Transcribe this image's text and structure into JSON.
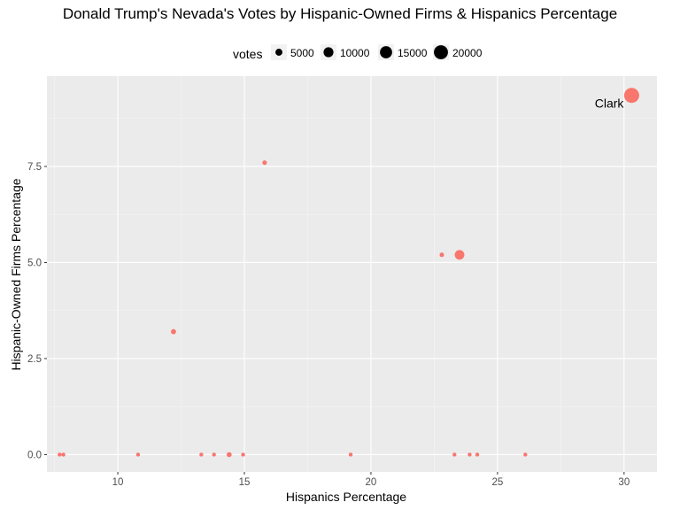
{
  "chart_data": {
    "type": "scatter",
    "title": "Donald Trump's Nevada's Votes by Hispanic-Owned Firms & Hispanics Percentage",
    "xlabel": "Hispanics Percentage",
    "ylabel": "Hispanic-Owned Firms Percentage",
    "xlim": [
      7.2,
      31.3
    ],
    "ylim": [
      -0.45,
      9.85
    ],
    "x_ticks": [
      10,
      15,
      20,
      25,
      30
    ],
    "y_ticks": [
      0.0,
      2.5,
      5.0,
      7.5
    ],
    "y_tick_labels": [
      "0.0",
      "2.5",
      "5.0",
      "7.5"
    ],
    "grid": true,
    "point_color": "#F8766D",
    "panel_color": "#EBEBEB",
    "legend": {
      "title": "votes",
      "position": "top",
      "breaks": [
        5000,
        10000,
        15000,
        20000
      ],
      "labels": [
        "5000",
        "10000",
        "15000",
        "20000"
      ]
    },
    "series": [
      {
        "points": [
          {
            "x": 30.3,
            "y": 9.35,
            "votes": 23000,
            "label": "Clark"
          },
          {
            "x": 15.8,
            "y": 7.6,
            "votes": 2100
          },
          {
            "x": 22.8,
            "y": 5.2,
            "votes": 2000
          },
          {
            "x": 23.5,
            "y": 5.2,
            "votes": 9500
          },
          {
            "x": 12.2,
            "y": 3.2,
            "votes": 2700
          },
          {
            "x": 7.7,
            "y": 0.0,
            "votes": 300
          },
          {
            "x": 7.85,
            "y": 0.0,
            "votes": 1600
          },
          {
            "x": 10.8,
            "y": 0.0,
            "votes": 1100
          },
          {
            "x": 13.3,
            "y": 0.0,
            "votes": 1300
          },
          {
            "x": 13.8,
            "y": 0.0,
            "votes": 300
          },
          {
            "x": 14.4,
            "y": 0.0,
            "votes": 2500
          },
          {
            "x": 14.95,
            "y": 0.0,
            "votes": 1100
          },
          {
            "x": 19.2,
            "y": 0.0,
            "votes": 300
          },
          {
            "x": 23.3,
            "y": 0.0,
            "votes": 800
          },
          {
            "x": 23.9,
            "y": 0.0,
            "votes": 1300
          },
          {
            "x": 24.2,
            "y": 0.0,
            "votes": 1300
          },
          {
            "x": 26.1,
            "y": 0.0,
            "votes": 1500
          }
        ]
      }
    ]
  }
}
